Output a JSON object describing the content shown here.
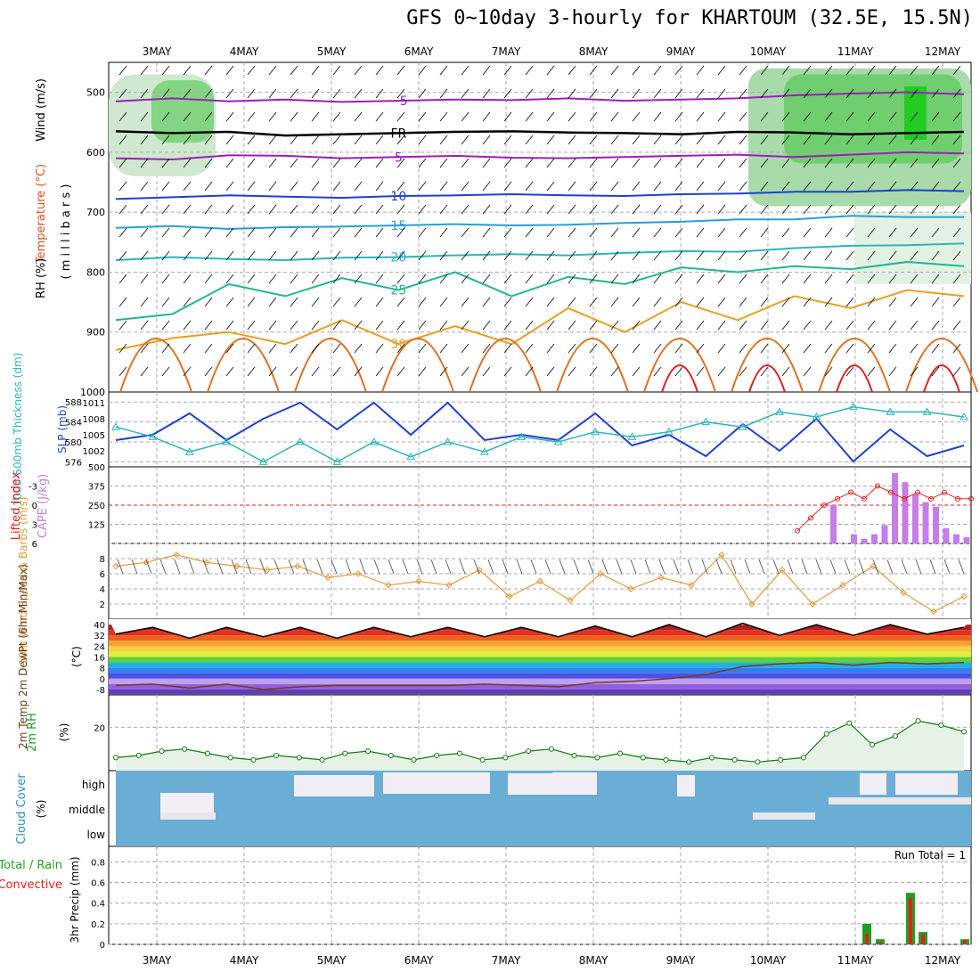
{
  "title": "GFS 0~10day 3-hourly for KHARTOUM (32.5E, 15.5N)",
  "colors": {
    "blue": "#1e40d0",
    "cyan": "#2ab5c0",
    "green": "#20a020",
    "orange": "#e8a020",
    "purple": "#9a20b8",
    "red": "#e02020",
    "rhfill": "#6fcf6f",
    "cloud": "#6aaed6",
    "cape": "#c77de8",
    "wind": "#e49a3a",
    "rh2m": "#117a11"
  },
  "chart_data": {
    "x_labels": [
      "3MAY",
      "4MAY",
      "5MAY",
      "6MAY",
      "7MAY",
      "8MAY",
      "9MAY",
      "10MAY",
      "11MAY",
      "12MAY"
    ],
    "upper": {
      "ylabel_wind": "Wind (m/s)",
      "ylabel_temp": "Temperature (°C)",
      "ylabel_rh": "RH (%)",
      "ylabel_p": "( m i l l i b a r s )",
      "ticks": [
        "500",
        "600",
        "700",
        "800",
        "900",
        "1000"
      ],
      "ylim": [
        1000,
        450
      ],
      "contours": [
        {
          "p": [
            565,
            568,
            566,
            572,
            570,
            568,
            566,
            565,
            567,
            568,
            570,
            566,
            567,
            570,
            568,
            566
          ],
          "label": "FR"
        },
        {
          "p": [
            515,
            510,
            515,
            512,
            516,
            514,
            512,
            513,
            510,
            514,
            512,
            510,
            505,
            502,
            500,
            503
          ],
          "label": "−5"
        },
        {
          "p": [
            610,
            612,
            605,
            606,
            610,
            608,
            606,
            609,
            610,
            608,
            606,
            604,
            608,
            604,
            600,
            602
          ],
          "label": "5"
        },
        {
          "p": [
            678,
            675,
            672,
            674,
            676,
            673,
            672,
            670,
            672,
            673,
            670,
            669,
            666,
            666,
            663,
            665
          ],
          "label": "10"
        },
        {
          "p": [
            726,
            723,
            728,
            725,
            724,
            722,
            720,
            722,
            721,
            718,
            716,
            712,
            712,
            706,
            708,
            708
          ],
          "label": "15"
        },
        {
          "p": [
            780,
            775,
            778,
            780,
            776,
            775,
            772,
            770,
            772,
            768,
            765,
            766,
            760,
            756,
            755,
            752
          ],
          "label": "20"
        },
        {
          "p": [
            880,
            870,
            820,
            840,
            810,
            830,
            800,
            840,
            808,
            820,
            792,
            800,
            790,
            795,
            783,
            790
          ],
          "label": "25"
        },
        {
          "p": [
            930,
            910,
            900,
            920,
            880,
            920,
            890,
            920,
            860,
            900,
            850,
            880,
            840,
            860,
            830,
            840
          ],
          "label": "30"
        }
      ]
    },
    "thickness_slp": {
      "ylabel": "1000-500mb Thickness (dm)",
      "ylabel2": "SLP (mb)",
      "left_ticks": [
        "588",
        "584",
        "580",
        "576"
      ],
      "right_ticks": [
        "1011",
        "1008",
        "1005",
        "1002"
      ],
      "slp": [
        1004,
        1005,
        1009,
        1004,
        1008,
        1011,
        1006,
        1011,
        1005,
        1011,
        1004,
        1005,
        1004,
        1009,
        1003,
        1005,
        1001,
        1007,
        1002,
        1008,
        1000,
        1006,
        1001,
        1003
      ],
      "thickness": [
        583,
        581,
        578,
        580,
        576,
        580,
        576,
        580,
        577,
        580,
        578,
        581,
        580,
        582,
        581,
        582,
        584,
        583,
        586,
        585,
        587,
        586,
        586,
        585
      ]
    },
    "lifted_cape": {
      "ylabel": "Lifted Index",
      "ylabel2": "CAPE (J/kg)",
      "left_ticks": [
        "-3",
        "0",
        "3",
        "6"
      ],
      "right_ticks": [
        "500",
        "375",
        "250",
        "125"
      ],
      "cape_bars": [
        250,
        0,
        60,
        30,
        60,
        120,
        460,
        400,
        320,
        270,
        240,
        100,
        60,
        40
      ],
      "li": [
        4,
        2,
        0,
        -1,
        -2,
        -1,
        -3,
        -2,
        -1,
        -2,
        -1,
        -2,
        -1,
        -1
      ]
    },
    "wind10m": {
      "ylabel": "10m Wind Speed & Barbs (m/s)",
      "ticks": [
        "8",
        "6",
        "4",
        "2"
      ],
      "speed": [
        7.0,
        7.5,
        8.5,
        7.5,
        7.0,
        6.5,
        7.0,
        5.5,
        6.0,
        4.5,
        5.0,
        4.5,
        6.5,
        3.0,
        5.0,
        2.5,
        6.0,
        4.0,
        5.5,
        4.5,
        8.5,
        2.0,
        6.5,
        2.0,
        4.5,
        7.0,
        3.5,
        1.0,
        3.0
      ]
    },
    "temp2m": {
      "ylabel": "2m Temp 2m DewPt (6hr Min/Max)",
      "ylabel2": "(°C)",
      "ticks": [
        "40",
        "32",
        "24",
        "16",
        "8",
        "0",
        "-8"
      ],
      "temp": [
        33,
        38,
        30,
        38,
        31,
        38,
        30,
        38,
        31,
        38,
        31,
        38,
        31,
        39,
        31,
        40,
        31,
        41,
        32,
        40,
        32,
        40,
        33,
        38
      ],
      "dew": [
        -5,
        -4,
        -7,
        -4,
        -8,
        -6,
        -5,
        -5,
        -5,
        -5,
        -4,
        -5,
        -6,
        -3,
        -2,
        0,
        3,
        9,
        11,
        12,
        10,
        12,
        11,
        12
      ]
    },
    "rh2m": {
      "ylabel": "2m RH",
      "ylabel2": "(%)",
      "ticks": [
        "20"
      ],
      "values": [
        6,
        7,
        9,
        10,
        8,
        6,
        5,
        7,
        6,
        5,
        8,
        9,
        7,
        5,
        7,
        8,
        5,
        6,
        9,
        10,
        7,
        6,
        8,
        6,
        5,
        4,
        6,
        5,
        4,
        5,
        6,
        17,
        22,
        12,
        16,
        23,
        21,
        18
      ]
    },
    "cloud": {
      "ylabel": "Cloud Cover",
      "ylabel2": "(%)",
      "ticks": [
        "high",
        "middle",
        "low"
      ]
    },
    "precip": {
      "ylabel": "3hr Precip (mm)",
      "ylabel2": "Total / Rain",
      "ylabel3": "Convective",
      "ticks": [
        "0.8",
        "0.6",
        "0.4",
        "0.2",
        "0"
      ],
      "run_total": "Run Total = 1",
      "bars": [
        [
          0.2,
          0.1
        ],
        [
          0.05,
          0.02
        ],
        [
          0.5,
          0.45
        ],
        [
          0.12,
          0.1
        ],
        [
          0.05,
          0.04
        ]
      ]
    }
  }
}
